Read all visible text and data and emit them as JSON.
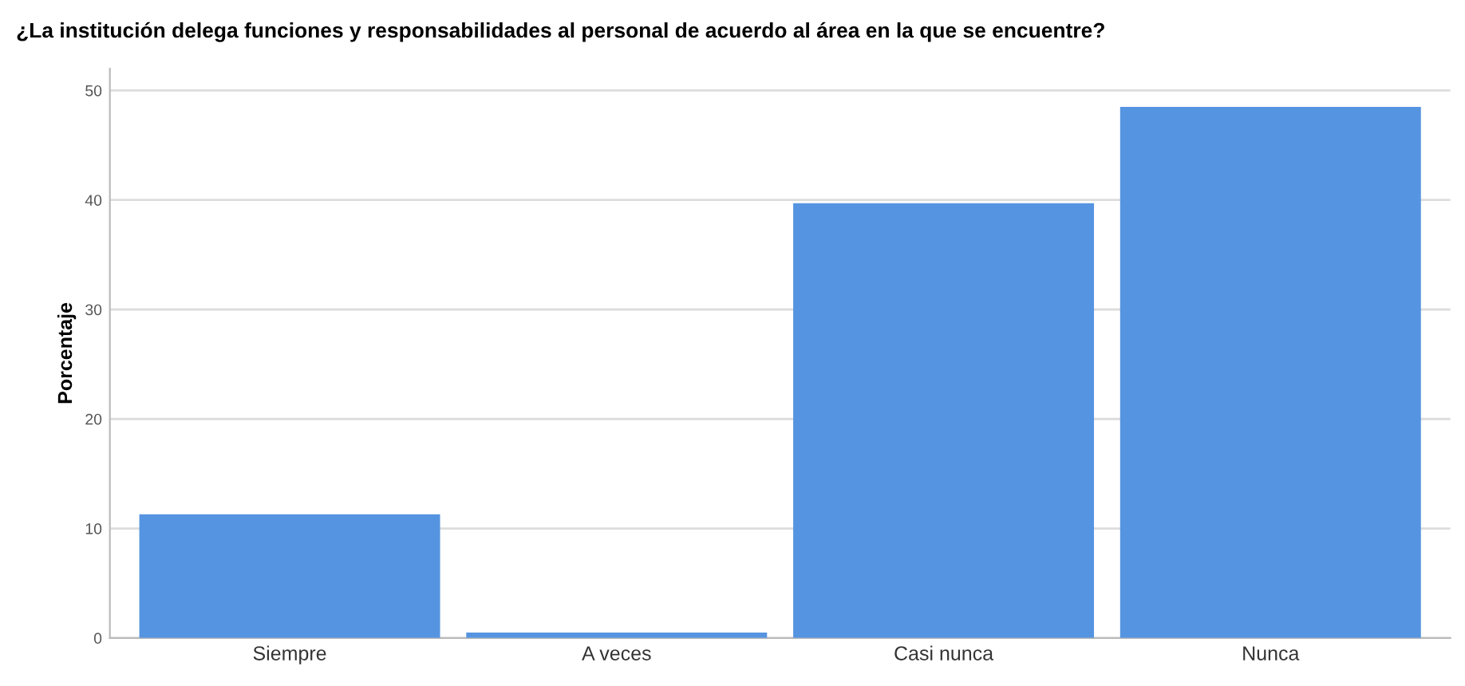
{
  "chart_data": {
    "type": "bar",
    "title": "¿La institución delega funciones y responsabilidades al personal de acuerdo al área en la que se encuentre?",
    "ylabel": "Porcentaje",
    "categories": [
      "Siempre",
      "A veces",
      "Casi nunca",
      "Nunca"
    ],
    "values": [
      11.3,
      0.5,
      39.7,
      48.5
    ],
    "color": "#5594e0",
    "ylim": [
      0,
      52
    ],
    "yticks": [
      0,
      10,
      20,
      30,
      40,
      50
    ],
    "grid": "y"
  }
}
